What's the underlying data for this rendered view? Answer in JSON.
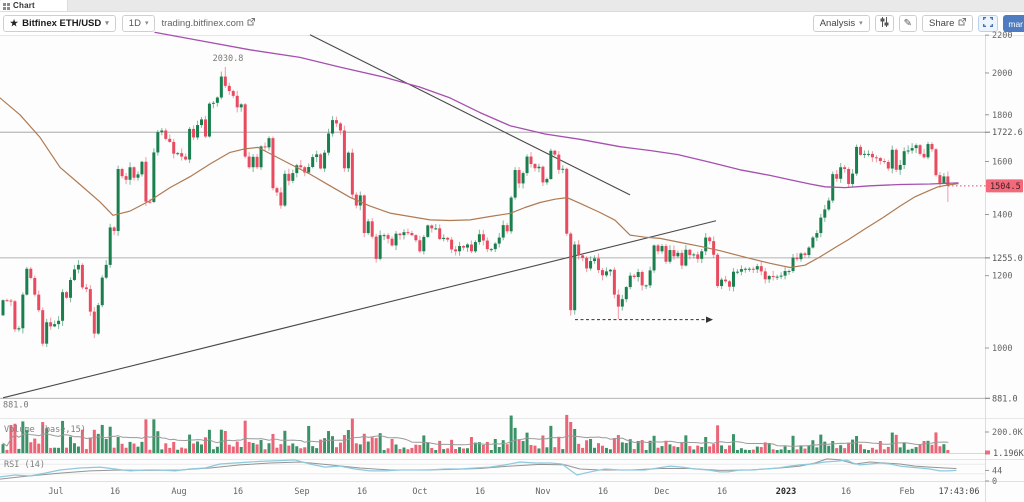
{
  "tab": {
    "title": "Chart"
  },
  "toolbar": {
    "symbol": "Bitfinex ETH/USD",
    "timeframe": "1D",
    "link": "trading.bitfinex.com",
    "analysis": "Analysis",
    "share": "Share",
    "overflow": "mar"
  },
  "icons": {
    "star": "★",
    "caret_down": "▾",
    "pencil": "✎"
  },
  "colors": {
    "up": "#1a7f4e",
    "down": "#e84a5f",
    "purple_ma": "#a64fb0",
    "brown_ma": "#b07a52",
    "rsi_line": "#8ec9de",
    "rsi_ma": "#8a8a8a",
    "level_line": "#8c8c8c",
    "trend_line": "#4a4a4a",
    "last_price_bg": "#f4697a",
    "axis_text": "#666666",
    "accent_blue": "#4f7cc0"
  },
  "price_axis": {
    "ticks": [
      2200,
      2000,
      1800,
      1600,
      1400,
      1200,
      1000
    ],
    "levels": [
      {
        "price": 1722.6,
        "label": "1722.6"
      },
      {
        "price": 1255.0,
        "label": "1255.0"
      },
      {
        "price": 881.0,
        "label": "881.0"
      }
    ],
    "last_price": 1504.5,
    "last_price_label": "1504.5"
  },
  "time_axis": {
    "labels": [
      [
        "Jul",
        56
      ],
      [
        "16",
        115
      ],
      [
        "Aug",
        179
      ],
      [
        "16",
        238
      ],
      [
        "Sep",
        302
      ],
      [
        "16",
        362
      ],
      [
        "Oct",
        420
      ],
      [
        "16",
        480
      ],
      [
        "Nov",
        543
      ],
      [
        "16",
        603
      ],
      [
        "Dec",
        662
      ],
      [
        "16",
        722
      ],
      [
        "2023",
        786
      ],
      [
        "16",
        846
      ],
      [
        "Feb",
        907
      ]
    ],
    "current_time": "17:43:06",
    "current_time_x": 959
  },
  "volume_panel": {
    "label": "Volume (base,15)",
    "scale_label": "200.0K",
    "current_label": "1.196K"
  },
  "rsi_panel": {
    "label": "RSI (14)",
    "current_label": "44",
    "bottom_label": "0",
    "series": [
      [
        0,
        17
      ],
      [
        15,
        25
      ],
      [
        30,
        21
      ],
      [
        45,
        33
      ],
      [
        60,
        46
      ],
      [
        80,
        54
      ],
      [
        100,
        58
      ],
      [
        115,
        50
      ],
      [
        130,
        42
      ],
      [
        145,
        46
      ],
      [
        160,
        46
      ],
      [
        175,
        42
      ],
      [
        190,
        50
      ],
      [
        205,
        54
      ],
      [
        220,
        71
      ],
      [
        235,
        75
      ],
      [
        250,
        79
      ],
      [
        265,
        83
      ],
      [
        280,
        85
      ],
      [
        295,
        88
      ],
      [
        310,
        71
      ],
      [
        325,
        58
      ],
      [
        340,
        62
      ],
      [
        355,
        50
      ],
      [
        370,
        42
      ],
      [
        385,
        42
      ],
      [
        400,
        46
      ],
      [
        415,
        46
      ],
      [
        430,
        46
      ],
      [
        445,
        50
      ],
      [
        460,
        50
      ],
      [
        475,
        54
      ],
      [
        490,
        58
      ],
      [
        505,
        67
      ],
      [
        520,
        79
      ],
      [
        535,
        75
      ],
      [
        550,
        75
      ],
      [
        562,
        71
      ],
      [
        570,
        46
      ],
      [
        577,
        25
      ],
      [
        585,
        33
      ],
      [
        595,
        42
      ],
      [
        605,
        50
      ],
      [
        620,
        46
      ],
      [
        632,
        46
      ],
      [
        645,
        46
      ],
      [
        658,
        54
      ],
      [
        670,
        62
      ],
      [
        682,
        58
      ],
      [
        695,
        50
      ],
      [
        708,
        46
      ],
      [
        720,
        38
      ],
      [
        728,
        38
      ],
      [
        740,
        46
      ],
      [
        752,
        46
      ],
      [
        765,
        50
      ],
      [
        778,
        54
      ],
      [
        790,
        62
      ],
      [
        800,
        67
      ],
      [
        812,
        71
      ],
      [
        825,
        79
      ],
      [
        837,
        83
      ],
      [
        847,
        87
      ],
      [
        853,
        75
      ],
      [
        860,
        67
      ],
      [
        870,
        71
      ],
      [
        880,
        75
      ],
      [
        890,
        71
      ],
      [
        900,
        62
      ],
      [
        910,
        58
      ],
      [
        920,
        54
      ],
      [
        930,
        50
      ],
      [
        940,
        42
      ],
      [
        948,
        42
      ],
      [
        956,
        44
      ]
    ],
    "ma": [
      [
        0,
        8
      ],
      [
        20,
        17
      ],
      [
        40,
        25
      ],
      [
        60,
        33
      ],
      [
        90,
        42
      ],
      [
        120,
        46
      ],
      [
        150,
        44
      ],
      [
        180,
        46
      ],
      [
        210,
        54
      ],
      [
        240,
        67
      ],
      [
        270,
        75
      ],
      [
        300,
        79
      ],
      [
        330,
        67
      ],
      [
        360,
        54
      ],
      [
        390,
        46
      ],
      [
        420,
        46
      ],
      [
        450,
        48
      ],
      [
        480,
        52
      ],
      [
        510,
        62
      ],
      [
        540,
        69
      ],
      [
        565,
        67
      ],
      [
        580,
        50
      ],
      [
        600,
        46
      ],
      [
        630,
        46
      ],
      [
        660,
        52
      ],
      [
        690,
        52
      ],
      [
        720,
        44
      ],
      [
        750,
        46
      ],
      [
        780,
        54
      ],
      [
        800,
        62
      ],
      [
        815,
        75
      ],
      [
        827,
        92
      ],
      [
        840,
        88
      ],
      [
        855,
        71
      ],
      [
        870,
        79
      ],
      [
        885,
        75
      ],
      [
        900,
        71
      ],
      [
        915,
        62
      ],
      [
        930,
        58
      ],
      [
        945,
        54
      ],
      [
        956,
        52
      ]
    ]
  },
  "chart_data": {
    "type": "candlestick",
    "symbol": "Bitfinex ETH/USD",
    "interval": "1D",
    "first_open": 1086,
    "closes": [
      1128,
      1127,
      1125,
      1048,
      1051,
      1144,
      1221,
      1193,
      1144,
      1100,
      1011,
      1067,
      1056,
      1062,
      1071,
      1151,
      1135,
      1187,
      1219,
      1233,
      1165,
      1160,
      1096,
      1037,
      1114,
      1194,
      1233,
      1355,
      1343,
      1570,
      1542,
      1528,
      1577,
      1536,
      1549,
      1599,
      1446,
      1445,
      1637,
      1723,
      1730,
      1694,
      1681,
      1632,
      1634,
      1620,
      1608,
      1737,
      1700,
      1754,
      1779,
      1704,
      1851,
      1855,
      1880,
      1982,
      1936,
      1911,
      1888,
      1834,
      1848,
      1620,
      1577,
      1619,
      1577,
      1662,
      1658,
      1697,
      1496,
      1480,
      1432,
      1551,
      1524,
      1554,
      1585,
      1577,
      1556,
      1578,
      1618,
      1629,
      1572,
      1636,
      1717,
      1776,
      1761,
      1730,
      1573,
      1636,
      1472,
      1432,
      1469,
      1336,
      1376,
      1324,
      1252,
      1329,
      1329,
      1317,
      1295,
      1334,
      1329,
      1339,
      1336,
      1329,
      1312,
      1276,
      1323,
      1362,
      1352,
      1352,
      1316,
      1320,
      1314,
      1282,
      1276,
      1293,
      1288,
      1298,
      1276,
      1306,
      1332,
      1311,
      1283,
      1283,
      1301,
      1321,
      1363,
      1342,
      1461,
      1566,
      1514,
      1554,
      1620,
      1590,
      1573,
      1579,
      1518,
      1531,
      1644,
      1628,
      1567,
      1571,
      1334,
      1100,
      1298,
      1263,
      1255,
      1222,
      1245,
      1253,
      1217,
      1201,
      1213,
      1218,
      1144,
      1110,
      1131,
      1166,
      1200,
      1196,
      1211,
      1171,
      1171,
      1216,
      1295,
      1276,
      1293,
      1243,
      1280,
      1260,
      1271,
      1231,
      1281,
      1264,
      1266,
      1252,
      1276,
      1321,
      1309,
      1265,
      1169,
      1188,
      1183,
      1167,
      1212,
      1212,
      1220,
      1221,
      1221,
      1219,
      1229,
      1213,
      1189,
      1199,
      1197,
      1197,
      1200,
      1214,
      1214,
      1256,
      1251,
      1269,
      1264,
      1288,
      1321,
      1336,
      1389,
      1418,
      1450,
      1550,
      1532,
      1577,
      1570,
      1512,
      1552,
      1660,
      1627,
      1631,
      1631,
      1617,
      1614,
      1602,
      1598,
      1572,
      1648,
      1567,
      1586,
      1642,
      1645,
      1655,
      1667,
      1631,
      1617,
      1672,
      1650,
      1546,
      1515,
      1541,
      1504.5
    ],
    "wick_overrides": {
      "56": {
        "high": 2030.8
      },
      "143": {
        "low": 1085
      },
      "155": {
        "low": 1075
      },
      "238": {
        "high": 1560,
        "low": 1445
      }
    },
    "volume_spikes": {
      "2": 28,
      "26": 14,
      "29": 16,
      "56": 22,
      "77": 27,
      "86": 18,
      "87": 23,
      "98": 14,
      "118": 16,
      "124": 14,
      "143": 31,
      "144": 24,
      "148": 14,
      "155": 18,
      "160": 12,
      "177": 16,
      "193": 10,
      "209": 12,
      "215": 17,
      "221": 12,
      "227": 10,
      "232": 12,
      "238": 3
    },
    "high_annotation": {
      "label": "2030.8",
      "x": 228,
      "price": 2030.8
    },
    "left_level_annotation": {
      "label": "881.0",
      "price": 881.0
    },
    "arrow_annotation": {
      "price": 1074,
      "x1": 575,
      "x2": 706
    },
    "trendline_down": {
      "x1": 310,
      "p1": 2202,
      "x2": 630,
      "p2": 1471
    },
    "trendline_up": {
      "x1": 3,
      "p1": 882,
      "x2": 716,
      "p2": 1378
    },
    "ma_purple": [
      [
        155,
        2215
      ],
      [
        200,
        2170
      ],
      [
        250,
        2120
      ],
      [
        300,
        2080
      ],
      [
        340,
        2030
      ],
      [
        383,
        1980
      ],
      [
        420,
        1930
      ],
      [
        450,
        1878
      ],
      [
        480,
        1810
      ],
      [
        510,
        1751
      ],
      [
        545,
        1715
      ],
      [
        580,
        1692
      ],
      [
        620,
        1661
      ],
      [
        650,
        1645
      ],
      [
        678,
        1628
      ],
      [
        710,
        1597
      ],
      [
        740,
        1567
      ],
      [
        770,
        1545
      ],
      [
        790,
        1528
      ],
      [
        810,
        1512
      ],
      [
        825,
        1501
      ],
      [
        845,
        1498
      ],
      [
        870,
        1505
      ],
      [
        900,
        1510
      ],
      [
        930,
        1512
      ],
      [
        958,
        1516
      ]
    ],
    "ma_brown": [
      [
        0,
        1878
      ],
      [
        20,
        1800
      ],
      [
        40,
        1700
      ],
      [
        60,
        1577
      ],
      [
        80,
        1510
      ],
      [
        100,
        1445
      ],
      [
        113,
        1397
      ],
      [
        130,
        1412
      ],
      [
        150,
        1450
      ],
      [
        170,
        1498
      ],
      [
        190,
        1540
      ],
      [
        210,
        1590
      ],
      [
        230,
        1637
      ],
      [
        245,
        1652
      ],
      [
        258,
        1658
      ],
      [
        272,
        1628
      ],
      [
        290,
        1590
      ],
      [
        310,
        1550
      ],
      [
        330,
        1505
      ],
      [
        350,
        1462
      ],
      [
        370,
        1430
      ],
      [
        390,
        1405
      ],
      [
        410,
        1393
      ],
      [
        430,
        1381
      ],
      [
        450,
        1379
      ],
      [
        470,
        1381
      ],
      [
        490,
        1393
      ],
      [
        510,
        1404
      ],
      [
        525,
        1425
      ],
      [
        540,
        1443
      ],
      [
        555,
        1455
      ],
      [
        567,
        1461
      ],
      [
        580,
        1440
      ],
      [
        600,
        1407
      ],
      [
        615,
        1380
      ],
      [
        630,
        1329
      ],
      [
        645,
        1322
      ],
      [
        660,
        1318
      ],
      [
        680,
        1305
      ],
      [
        700,
        1292
      ],
      [
        720,
        1278
      ],
      [
        745,
        1257
      ],
      [
        770,
        1238
      ],
      [
        790,
        1225
      ],
      [
        805,
        1232
      ],
      [
        820,
        1258
      ],
      [
        835,
        1288
      ],
      [
        848,
        1313
      ],
      [
        865,
        1350
      ],
      [
        883,
        1389
      ],
      [
        900,
        1430
      ],
      [
        915,
        1464
      ],
      [
        928,
        1485
      ],
      [
        938,
        1501
      ],
      [
        948,
        1508
      ],
      [
        958,
        1513
      ]
    ]
  }
}
